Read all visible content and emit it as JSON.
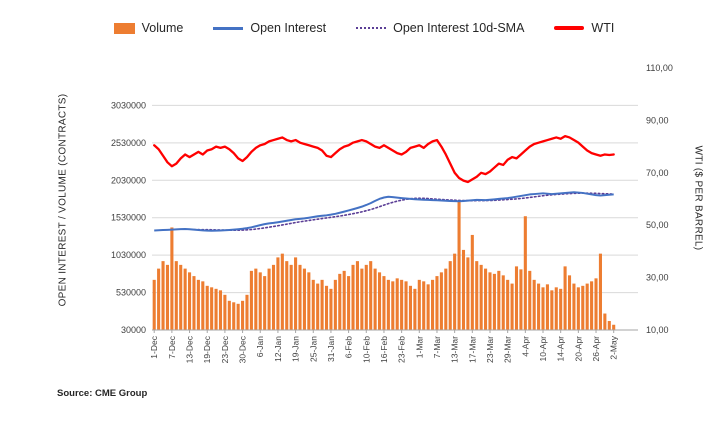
{
  "legend": {
    "items": [
      {
        "label": "Volume",
        "type": "bar",
        "color": "#ED7D31"
      },
      {
        "label": "Open Interest",
        "type": "line",
        "color": "#4472C4"
      },
      {
        "label": "Open Interest 10d-SMA",
        "type": "dotted",
        "color": "#5B3E96"
      },
      {
        "label": "WTI",
        "type": "thick",
        "color": "#FF0000"
      }
    ]
  },
  "axes": {
    "left_title": "OPEN INTEREST / VOLUME (CONTRACTS)",
    "right_title": "WTI ($ PER BARREL)"
  },
  "source": "Source: CME Group",
  "chart_data": {
    "type": "bar+line combo (dual axis)",
    "x_tick_labels": [
      "1-Dec",
      "7-Dec",
      "13-Dec",
      "19-Dec",
      "23-Dec",
      "30-Dec",
      "6-Jan",
      "12-Jan",
      "19-Jan",
      "25-Jan",
      "31-Jan",
      "6-Feb",
      "10-Feb",
      "16-Feb",
      "23-Feb",
      "1-Mar",
      "7-Mar",
      "13-Mar",
      "17-Mar",
      "23-Mar",
      "29-Mar",
      "4-Apr",
      "10-Apr",
      "14-Apr",
      "20-Apr",
      "26-Apr",
      "2-May"
    ],
    "x_tick_every": 4,
    "x_slots": 110,
    "grid": "horizontal, light gray",
    "legend_position": "top",
    "left_axis": {
      "min": 30000,
      "max": 3530000,
      "ticks": [
        30000,
        530000,
        1030000,
        1530000,
        2030000,
        2530000,
        3030000
      ]
    },
    "right_axis": {
      "min": 10,
      "max": 110,
      "ticks": [
        10,
        30,
        50,
        70,
        90,
        110
      ],
      "tick_labels": [
        "10,00",
        "30,00",
        "50,00",
        "70,00",
        "90,00",
        "110,00"
      ]
    },
    "series": [
      {
        "name": "Volume",
        "axis": "left",
        "type": "bar",
        "color": "#ED7D31",
        "values": [
          700000,
          850000,
          950000,
          900000,
          1400000,
          950000,
          900000,
          850000,
          800000,
          750000,
          700000,
          680000,
          620000,
          600000,
          580000,
          560000,
          500000,
          420000,
          400000,
          380000,
          420000,
          500000,
          820000,
          850000,
          800000,
          750000,
          850000,
          900000,
          1000000,
          1050000,
          950000,
          900000,
          1000000,
          900000,
          850000,
          800000,
          700000,
          650000,
          700000,
          620000,
          580000,
          700000,
          780000,
          820000,
          750000,
          900000,
          950000,
          850000,
          900000,
          950000,
          850000,
          800000,
          750000,
          700000,
          680000,
          720000,
          700000,
          680000,
          620000,
          580000,
          700000,
          680000,
          640000,
          700000,
          750000,
          800000,
          850000,
          950000,
          1050000,
          1750000,
          1100000,
          1000000,
          1300000,
          950000,
          900000,
          850000,
          800000,
          780000,
          820000,
          760000,
          700000,
          650000,
          880000,
          840000,
          1550000,
          820000,
          700000,
          650000,
          600000,
          640000,
          560000,
          600000,
          580000,
          880000,
          760000,
          650000,
          600000,
          620000,
          650000,
          680000,
          720000,
          1050000,
          250000,
          150000,
          100000
        ]
      },
      {
        "name": "Open Interest",
        "axis": "left",
        "type": "line",
        "color": "#4472C4",
        "values": [
          1360000,
          1363000,
          1366000,
          1368000,
          1371000,
          1374000,
          1377000,
          1379000,
          1376000,
          1371000,
          1366000,
          1361000,
          1358000,
          1356000,
          1357000,
          1359000,
          1362000,
          1366000,
          1371000,
          1376000,
          1382000,
          1391000,
          1402000,
          1416000,
          1431000,
          1444000,
          1454000,
          1461000,
          1470000,
          1480000,
          1490000,
          1500000,
          1509000,
          1515000,
          1521000,
          1530000,
          1540000,
          1549000,
          1556000,
          1562000,
          1571000,
          1582000,
          1596000,
          1611000,
          1627000,
          1643000,
          1660000,
          1678000,
          1700000,
          1725000,
          1755000,
          1782000,
          1800000,
          1810000,
          1805000,
          1798000,
          1792000,
          1786000,
          1781000,
          1777000,
          1773000,
          1770000,
          1768000,
          1765000,
          1763000,
          1760000,
          1757000,
          1754000,
          1752000,
          1750000,
          1754000,
          1759000,
          1764000,
          1769000,
          1767000,
          1765000,
          1770000,
          1775000,
          1781000,
          1786000,
          1792000,
          1801000,
          1811000,
          1821000,
          1831000,
          1841000,
          1846000,
          1851000,
          1856000,
          1851000,
          1846000,
          1851000,
          1856000,
          1861000,
          1866000,
          1871000,
          1866000,
          1861000,
          1851000,
          1841000,
          1831000,
          1826000,
          1831000,
          1836000,
          1841000
        ]
      },
      {
        "name": "Open Interest 10d-SMA",
        "axis": "left",
        "type": "dotted-line",
        "color": "#5B3E96",
        "derived": "10-day moving average of Open Interest"
      },
      {
        "name": "WTI",
        "axis": "right",
        "type": "line",
        "color": "#FF0000",
        "values": [
          80.5,
          79,
          76.5,
          74,
          72.5,
          73.5,
          75.5,
          77,
          76,
          77,
          78,
          77,
          78.5,
          79,
          80,
          79.5,
          80,
          79,
          77.5,
          75.5,
          74.5,
          76,
          78,
          79.5,
          80.5,
          81,
          82,
          82.5,
          83,
          83.5,
          82.5,
          82,
          82.5,
          81.5,
          81,
          80.5,
          80,
          79.5,
          78.5,
          76.5,
          76,
          77.5,
          79,
          80,
          80.5,
          81.5,
          82,
          82.5,
          82,
          81,
          80,
          79.5,
          80.5,
          79.5,
          78.5,
          77.5,
          77,
          78,
          79.5,
          80,
          80.5,
          79.5,
          81,
          82,
          82.5,
          80,
          77,
          73.5,
          70,
          68,
          67,
          66.5,
          67.5,
          68.5,
          70,
          69.5,
          70.5,
          72,
          73.5,
          73,
          75,
          76,
          75.5,
          77,
          78.5,
          80,
          81,
          81.5,
          82,
          82.5,
          83,
          83.5,
          83,
          84,
          83.5,
          82.5,
          81.5,
          80,
          78.5,
          77.5,
          77,
          76.5,
          77,
          76.8,
          77
        ]
      }
    ]
  }
}
